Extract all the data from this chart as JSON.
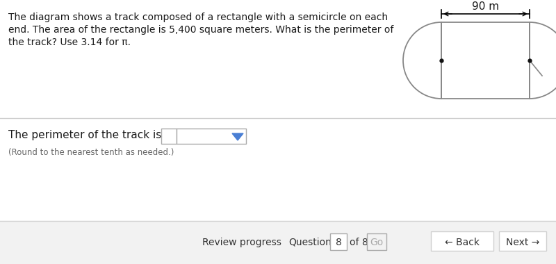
{
  "bg_color": "#ffffff",
  "text_color": "#1a1a1a",
  "gray_text": "#666666",
  "problem_text_line1": "The diagram shows a track composed of a rectangle with a semicircle on each",
  "problem_text_line2": "end. The area of the rectangle is 5,400 square meters. What is the perimeter of",
  "problem_text_line3": "the track? Use 3.14 for π.",
  "answer_text": "The perimeter of the track is",
  "round_text": "(Round to the nearest tenth as needed.)",
  "dimension_label": "90 m",
  "track_color": "#888888",
  "track_lw": 1.3,
  "dot_color": "#111111",
  "separator_color": "#cccccc",
  "nav_bg": "#f2f2f2",
  "nav_border": "#d0d0d0",
  "dropdown_blue": "#4a7fd4",
  "go_gray": "#aaaaaa",
  "nav_text": "#333333",
  "box_border": "#aaaaaa"
}
